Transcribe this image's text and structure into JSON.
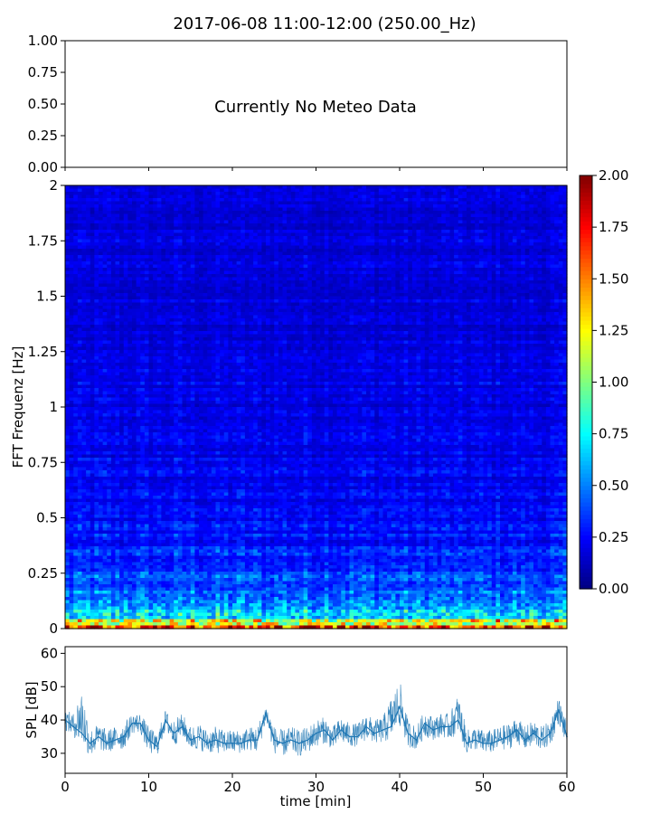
{
  "title": "2017-06-08 11:00-12:00 (250.00_Hz)",
  "chart_data": [
    {
      "panel": "meteo",
      "type": "line",
      "annotation": "Currently No Meteo Data",
      "ylim": [
        0,
        1
      ],
      "yticks": [
        "0.00",
        "0.25",
        "0.50",
        "0.75",
        "1.00"
      ],
      "series": []
    },
    {
      "panel": "spectrogram",
      "type": "heatmap",
      "ylabel": "FFT Frequenz [Hz]",
      "ylim": [
        0,
        2
      ],
      "xlim": [
        0,
        60
      ],
      "yticks": [
        "0",
        "0.25",
        "0.5",
        "0.75",
        "1",
        "1.25",
        "1.5",
        "1.75",
        "2"
      ],
      "colormap": "jet",
      "colorbar": {
        "range": [
          0,
          2
        ],
        "ticks": [
          "0.00",
          "0.25",
          "0.50",
          "0.75",
          "1.00",
          "1.25",
          "1.50",
          "1.75",
          "2.00"
        ]
      },
      "frequency_profile": {
        "frequency_hz": [
          0.0,
          0.02,
          0.05,
          0.1,
          0.2,
          0.3,
          0.5,
          0.75,
          1.0,
          1.5,
          2.0
        ],
        "typical_value": [
          2.0,
          1.2,
          0.8,
          0.5,
          0.38,
          0.32,
          0.26,
          0.22,
          0.2,
          0.18,
          0.17
        ]
      }
    },
    {
      "panel": "spl",
      "type": "line",
      "xlabel": "time [min]",
      "ylabel": "SPL [dB]",
      "xlim": [
        0,
        60
      ],
      "ylim": [
        24,
        62
      ],
      "xticks": [
        "0",
        "10",
        "20",
        "30",
        "40",
        "50",
        "60"
      ],
      "yticks": [
        "30",
        "40",
        "50",
        "60"
      ],
      "series": [
        {
          "color": "#1f77b4",
          "x": [
            0,
            1,
            2,
            3,
            4,
            5,
            6,
            7,
            8,
            9,
            10,
            11,
            12,
            13,
            14,
            15,
            16,
            17,
            18,
            19,
            20,
            21,
            22,
            23,
            24,
            25,
            26,
            27,
            28,
            29,
            30,
            31,
            32,
            33,
            34,
            35,
            36,
            37,
            38,
            39,
            40,
            41,
            42,
            43,
            44,
            45,
            46,
            47,
            48,
            49,
            50,
            51,
            52,
            53,
            54,
            55,
            56,
            57,
            58,
            59,
            60
          ],
          "y": [
            40,
            38,
            36,
            33,
            35,
            33,
            34,
            35,
            39,
            39,
            34,
            32,
            40,
            36,
            38,
            34,
            35,
            33,
            34,
            33,
            33,
            33,
            34,
            34,
            42,
            34,
            33,
            34,
            33,
            34,
            36,
            37,
            34,
            37,
            35,
            35,
            38,
            36,
            37,
            38,
            44,
            36,
            34,
            39,
            37,
            38,
            38,
            40,
            33,
            34,
            33,
            33,
            34,
            35,
            37,
            34,
            36,
            34,
            36,
            43,
            35
          ],
          "band_low": [
            37,
            35,
            32,
            29,
            31,
            30,
            31,
            31,
            36,
            36,
            30,
            29,
            37,
            32,
            35,
            31,
            31,
            30,
            30,
            30,
            30,
            30,
            31,
            30,
            39,
            30,
            29,
            30,
            29,
            30,
            32,
            33,
            31,
            33,
            32,
            32,
            34,
            33,
            33,
            34,
            38,
            32,
            31,
            35,
            34,
            35,
            34,
            36,
            30,
            31,
            30,
            30,
            31,
            31,
            33,
            31,
            32,
            31,
            32,
            39,
            32
          ],
          "band_high": [
            43,
            42,
            50,
            37,
            39,
            37,
            38,
            39,
            42,
            42,
            38,
            36,
            43,
            40,
            42,
            38,
            39,
            37,
            38,
            37,
            37,
            37,
            38,
            38,
            45,
            38,
            37,
            38,
            37,
            38,
            40,
            41,
            38,
            41,
            39,
            39,
            42,
            40,
            41,
            47,
            52,
            40,
            38,
            43,
            41,
            42,
            42,
            48,
            37,
            38,
            37,
            37,
            38,
            39,
            41,
            38,
            40,
            38,
            40,
            47,
            39
          ]
        }
      ]
    }
  ]
}
